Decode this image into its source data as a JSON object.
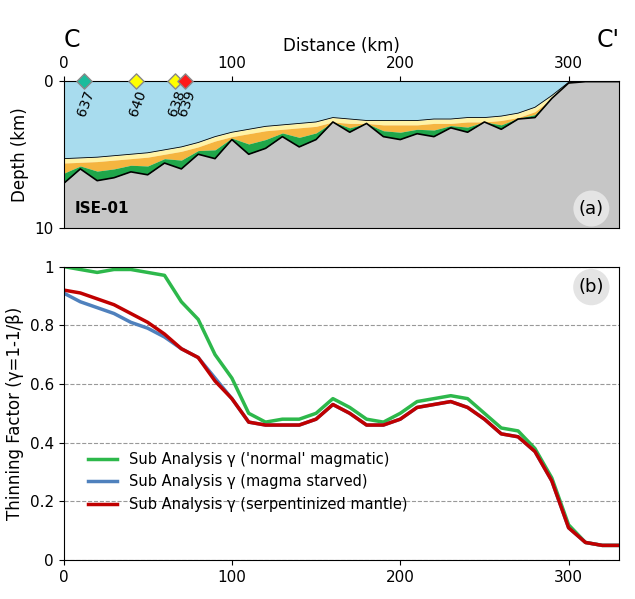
{
  "chart_data": [
    {
      "type": "profile",
      "title_left": "C",
      "title_right": "C'",
      "xlabel": "Distance (km)",
      "ylabel": "Depth (km)",
      "annotations": [
        "ISE-01",
        "(a)"
      ],
      "x": [
        0,
        10,
        20,
        30,
        40,
        50,
        60,
        70,
        80,
        90,
        100,
        110,
        120,
        130,
        140,
        150,
        160,
        170,
        180,
        190,
        200,
        210,
        220,
        230,
        240,
        250,
        260,
        270,
        280,
        290,
        300,
        310,
        320,
        330
      ],
      "surfaces": [
        [
          5.3,
          5.25,
          5.2,
          5.1,
          5.0,
          4.9,
          4.7,
          4.5,
          4.2,
          3.8,
          3.5,
          3.3,
          3.1,
          3.0,
          2.9,
          2.8,
          2.5,
          2.6,
          2.7,
          2.7,
          2.7,
          2.7,
          2.6,
          2.6,
          2.5,
          2.5,
          2.4,
          2.2,
          1.8,
          1.0,
          0.1,
          0.05,
          0.05,
          0.05
        ],
        [
          5.6,
          5.55,
          5.5,
          5.4,
          5.3,
          5.2,
          5.0,
          4.8,
          4.5,
          4.1,
          3.8,
          3.6,
          3.4,
          3.3,
          3.2,
          3.1,
          2.8,
          2.9,
          2.9,
          3.0,
          3.0,
          3.0,
          2.9,
          2.9,
          2.8,
          2.8,
          2.7,
          2.5,
          2.1,
          1.2,
          0.15,
          0.05,
          0.05,
          0.05
        ],
        [
          6.3,
          5.8,
          6.15,
          6.0,
          5.75,
          5.8,
          5.3,
          5.4,
          4.75,
          4.7,
          3.9,
          4.3,
          4.0,
          3.55,
          3.85,
          3.55,
          2.8,
          3.2,
          2.9,
          3.4,
          3.5,
          3.3,
          3.35,
          3.05,
          3.15,
          2.8,
          3.0,
          2.55,
          2.3,
          1.2,
          0.15,
          0.05,
          0.05,
          0.05
        ],
        [
          7.0,
          6.0,
          6.8,
          6.6,
          6.2,
          6.4,
          5.6,
          6.0,
          5.0,
          5.3,
          4.0,
          5.0,
          4.6,
          3.8,
          4.5,
          4.0,
          2.8,
          3.5,
          2.9,
          3.8,
          4.0,
          3.6,
          3.8,
          3.2,
          3.5,
          2.8,
          3.3,
          2.6,
          2.5,
          1.2,
          0.15,
          0.05,
          0.05,
          0.05
        ]
      ],
      "colors": [
        "#a8dcee",
        "#fff3a6",
        "#f5b540",
        "#1fa64a",
        "#c6c6c6"
      ],
      "sites": [
        {
          "label": "637",
          "x": 12,
          "color": "#1abc9c"
        },
        {
          "label": "640",
          "x": 43,
          "color": "#ffff00"
        },
        {
          "label": "638",
          "x": 66,
          "color": "#ffff00"
        },
        {
          "label": "639",
          "x": 72,
          "color": "#ff1a1a"
        }
      ],
      "xlim": [
        0,
        330
      ],
      "xticks": [
        0,
        100,
        200,
        300
      ],
      "ylim": [
        10,
        0
      ],
      "yticks": [
        0,
        10
      ]
    },
    {
      "type": "line",
      "ylabel": "Thinning Factor (γ=1-1/β)",
      "annotations": [
        "(b)"
      ],
      "x": [
        0,
        10,
        20,
        30,
        40,
        50,
        60,
        70,
        80,
        90,
        100,
        110,
        120,
        130,
        140,
        150,
        160,
        170,
        180,
        190,
        200,
        210,
        220,
        230,
        240,
        250,
        260,
        270,
        280,
        290,
        300,
        310,
        320,
        330
      ],
      "series": [
        {
          "name": "Sub Analysis γ ('normal' magmatic)",
          "color": "#2db84b",
          "values": [
            1.0,
            0.99,
            0.98,
            0.99,
            0.99,
            0.98,
            0.97,
            0.88,
            0.82,
            0.7,
            0.62,
            0.5,
            0.47,
            0.48,
            0.48,
            0.5,
            0.55,
            0.52,
            0.48,
            0.47,
            0.5,
            0.54,
            0.55,
            0.56,
            0.55,
            0.5,
            0.45,
            0.44,
            0.38,
            0.28,
            0.12,
            0.06,
            0.05,
            0.05
          ]
        },
        {
          "name": "Sub Analysis γ (magma starved)",
          "color": "#4f81bd",
          "values": [
            0.91,
            0.88,
            0.86,
            0.84,
            0.81,
            0.79,
            0.76,
            0.72,
            0.69,
            0.62,
            0.55,
            0.47,
            0.46,
            0.46,
            0.46,
            0.48,
            0.53,
            0.5,
            0.46,
            0.46,
            0.48,
            0.52,
            0.53,
            0.54,
            0.52,
            0.48,
            0.43,
            0.42,
            0.37,
            0.27,
            0.11,
            0.06,
            0.05,
            0.05
          ]
        },
        {
          "name": "Sub Analysis γ (serpentinized mantle)",
          "color": "#c00000",
          "values": [
            0.92,
            0.91,
            0.89,
            0.87,
            0.84,
            0.81,
            0.77,
            0.72,
            0.69,
            0.61,
            0.55,
            0.47,
            0.46,
            0.46,
            0.46,
            0.48,
            0.53,
            0.5,
            0.46,
            0.46,
            0.48,
            0.52,
            0.53,
            0.54,
            0.52,
            0.48,
            0.43,
            0.42,
            0.37,
            0.27,
            0.11,
            0.06,
            0.05,
            0.05
          ]
        }
      ],
      "xlim": [
        0,
        330
      ],
      "xticks": [
        0,
        100,
        200,
        300
      ],
      "ylim": [
        0,
        1
      ],
      "yticks": [
        0,
        0.2,
        0.4,
        0.6,
        0.8,
        1
      ],
      "grid": true,
      "legend": "lower left"
    }
  ]
}
